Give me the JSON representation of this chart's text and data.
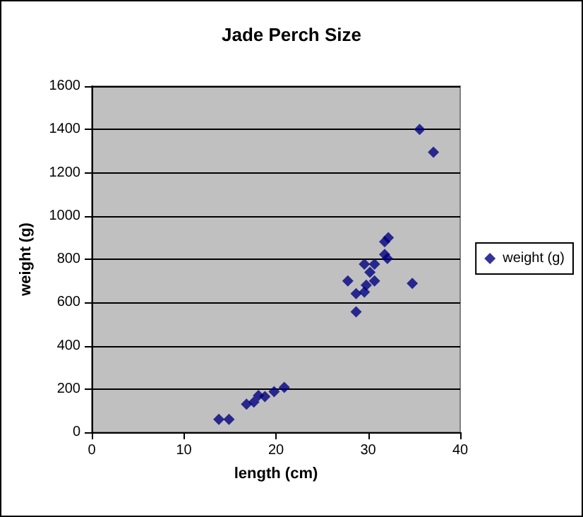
{
  "chart_data": {
    "type": "scatter",
    "title": "Jade Perch Size",
    "xlabel": "length (cm)",
    "ylabel": "weight (g)",
    "xlim": [
      0,
      40
    ],
    "xticks": [
      0,
      10,
      20,
      30,
      40
    ],
    "ylim": [
      0,
      1600
    ],
    "yticks": [
      0,
      200,
      400,
      600,
      800,
      1000,
      1200,
      1400,
      1600
    ],
    "grid": "y",
    "legend": "right",
    "marker": "diamond",
    "series": [
      {
        "name": "weight (g)",
        "color": "#000080",
        "x": [
          13.8,
          14.9,
          16.8,
          17.6,
          18.1,
          18.8,
          19.8,
          20.9,
          27.8,
          28.7,
          28.7,
          29.6,
          29.8,
          29.6,
          30.2,
          30.7,
          30.7,
          31.8,
          32.1,
          31.8,
          32.2,
          34.8,
          35.6,
          37.1
        ],
        "values": [
          60,
          60,
          130,
          140,
          170,
          165,
          188,
          207,
          700,
          557,
          641,
          648,
          680,
          777,
          740,
          777,
          700,
          822,
          803,
          881,
          900,
          688,
          1400,
          1295
        ]
      }
    ]
  }
}
